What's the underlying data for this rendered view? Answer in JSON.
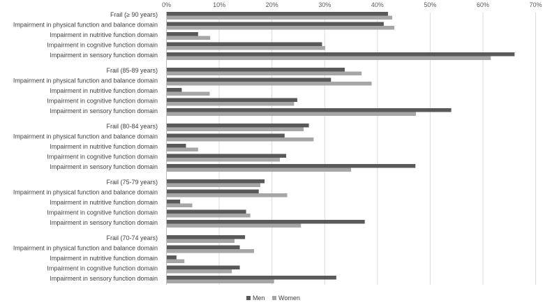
{
  "chart_data": {
    "type": "bar",
    "orientation": "horizontal",
    "title": "",
    "xlabel": "",
    "ylabel": "",
    "xlim": [
      0,
      70
    ],
    "x_ticks": [
      "0%",
      "10%",
      "20%",
      "30%",
      "40%",
      "50%",
      "60%",
      "70%"
    ],
    "grid": true,
    "legend_position": "bottom",
    "categories": [
      "Frail (≥ 90 years)",
      "Impairment in physical function and balance domain",
      "Impairment in  nutritive function domain",
      "Impairment in cognitive function domain",
      "Impairment in sensory function domain",
      "Frail (85-89 years)",
      "Impairment in physical function and balance domain",
      "Impairment in  nutritive function domain",
      "Impairment in cognitive function domain",
      "Impairment in sensory function domain",
      "Frail (80-84 years)",
      "Impairment in physical function and balance domain",
      "Impairment in  nutritive function domain",
      "Impairment in cognitive function domain",
      "Impairment in sensory function domain",
      "Frail (75-79 years)",
      "Impairment in physical function and balance domain",
      "Impairment in  nutritive function domain",
      "Impairment in cognitive function domain",
      "Impairment in sensory function domain",
      "Frail (70-74 years)",
      "Impairment in physical function and balance domain",
      "Impairment in  nutritive function domain",
      "Impairment in cognitive function domain",
      "Impairment in sensory function domain"
    ],
    "series": [
      {
        "name": "Men",
        "color": "#595959",
        "values": [
          42.0,
          41.2,
          6.0,
          29.5,
          66.0,
          33.8,
          31.2,
          2.9,
          24.8,
          54.0,
          27.0,
          22.4,
          3.7,
          22.7,
          47.2,
          18.6,
          17.5,
          2.6,
          15.1,
          37.6,
          14.9,
          13.9,
          1.9,
          13.9,
          32.2
        ]
      },
      {
        "name": "Women",
        "color": "#a6a6a6",
        "values": [
          42.8,
          43.2,
          8.3,
          30.1,
          61.5,
          37.0,
          38.9,
          8.2,
          24.2,
          47.3,
          26.0,
          27.9,
          6.0,
          21.5,
          35.0,
          17.8,
          22.9,
          4.9,
          15.9,
          25.5,
          12.9,
          16.6,
          3.4,
          12.4,
          20.4
        ]
      }
    ]
  }
}
